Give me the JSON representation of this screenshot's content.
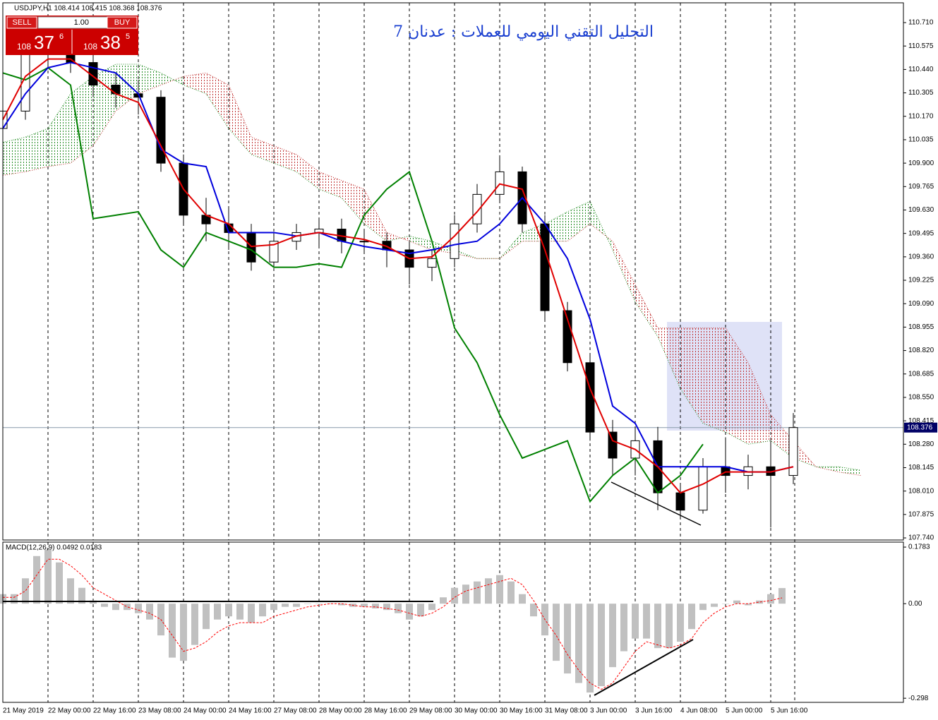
{
  "header": {
    "symbol_line": "USDJPY,H1  108.414 108.415 108.368 108.376"
  },
  "trade_panel": {
    "sell": "SELL",
    "lot": "1.00",
    "buy": "BUY",
    "sell_big": "108",
    "sell_pips": "37",
    "sell_frac": "6",
    "buy_big": "108",
    "buy_pips": "38",
    "buy_frac": "5"
  },
  "chart_data": [
    {
      "type": "candlestick",
      "title": "التحليل التقني اليومي للعملات : عدنان 7",
      "open": [
        110.1,
        110.2,
        110.55,
        110.55,
        110.48,
        110.35,
        110.3,
        110.28,
        109.9,
        109.6,
        109.55,
        109.5,
        109.33,
        109.45,
        109.5,
        109.52,
        109.45,
        109.45,
        109.4,
        109.3,
        109.35,
        109.55,
        109.72,
        109.85,
        109.55,
        109.05,
        108.75,
        108.35,
        108.2,
        108.3,
        108.0,
        107.9,
        108.15,
        108.1,
        108.15,
        108.1
      ],
      "high": [
        110.3,
        110.62,
        110.62,
        110.6,
        110.52,
        110.42,
        110.38,
        110.32,
        109.95,
        109.7,
        109.65,
        109.55,
        109.5,
        109.55,
        109.58,
        109.58,
        109.52,
        109.5,
        109.45,
        109.4,
        109.6,
        109.78,
        109.93,
        109.88,
        109.6,
        109.1,
        108.8,
        108.42,
        108.38,
        108.38,
        108.05,
        108.2,
        108.32,
        108.22,
        108.3,
        108.46
      ],
      "low": [
        110.02,
        110.15,
        110.45,
        110.42,
        110.28,
        110.22,
        110.18,
        109.85,
        109.55,
        109.45,
        109.4,
        109.28,
        109.3,
        109.4,
        109.42,
        109.38,
        109.38,
        109.3,
        109.2,
        109.22,
        109.3,
        109.5,
        109.68,
        109.5,
        109.0,
        108.7,
        108.3,
        108.1,
        108.1,
        107.9,
        107.85,
        107.88,
        108.0,
        108.02,
        107.8,
        108.05
      ],
      "close": [
        110.2,
        110.55,
        110.55,
        110.48,
        110.35,
        110.3,
        110.28,
        109.9,
        109.6,
        109.55,
        109.5,
        109.33,
        109.45,
        109.5,
        109.52,
        109.45,
        109.45,
        109.4,
        109.3,
        109.35,
        109.55,
        109.72,
        109.85,
        109.55,
        109.05,
        108.75,
        108.35,
        108.2,
        108.3,
        108.0,
        107.9,
        108.15,
        108.1,
        108.15,
        108.1,
        108.376
      ],
      "up_color": "#ffffff",
      "down_color": "#000000",
      "cloud": {
        "up_color": "#1f8a1f",
        "down_color": "#c03030",
        "span_a": [
          110.02,
          110.05,
          110.1,
          110.3,
          110.4,
          110.47,
          110.47,
          110.42,
          110.35,
          110.3,
          110.1,
          109.95,
          109.9,
          109.85,
          109.75,
          109.7,
          109.55,
          109.45,
          109.48,
          109.45,
          109.4,
          109.35,
          109.35,
          109.5,
          109.55,
          109.62,
          109.68,
          109.4,
          109.1,
          108.9,
          108.6,
          108.4,
          108.35,
          108.28,
          108.3,
          108.2,
          108.15,
          108.15,
          108.13
        ],
        "span_b": [
          109.83,
          109.85,
          109.88,
          109.9,
          110.0,
          110.2,
          110.3,
          110.35,
          110.4,
          110.42,
          110.35,
          110.05,
          110.0,
          109.95,
          109.85,
          109.8,
          109.75,
          109.5,
          109.45,
          109.4,
          109.38,
          109.35,
          109.35,
          109.45,
          109.45,
          109.45,
          109.55,
          109.45,
          109.2,
          108.95,
          108.95,
          108.95,
          108.95,
          108.75,
          108.45,
          108.3,
          108.15,
          108.12,
          108.1
        ]
      },
      "overlays": [
        {
          "color": "#008000",
          "values": [
            110.42,
            110.38,
            110.45,
            110.35,
            109.58,
            109.6,
            109.62,
            109.4,
            109.3,
            109.5,
            109.45,
            109.4,
            109.3,
            109.3,
            109.32,
            109.3,
            109.6,
            109.75,
            109.85,
            109.45,
            108.95,
            108.75,
            108.45,
            108.2,
            108.25,
            108.3,
            107.95,
            108.1,
            108.2,
            108.0,
            108.1,
            108.28,
            null,
            null,
            null,
            null
          ]
        },
        {
          "color": "#0000dd",
          "values": [
            110.1,
            110.3,
            110.45,
            110.48,
            110.45,
            110.42,
            110.3,
            109.98,
            109.9,
            109.88,
            109.5,
            109.5,
            109.5,
            109.48,
            109.5,
            109.45,
            109.42,
            109.4,
            109.38,
            109.4,
            109.43,
            109.45,
            109.55,
            109.7,
            109.55,
            109.35,
            109.0,
            108.5,
            108.4,
            108.15,
            108.15,
            108.15,
            108.15,
            108.12,
            108.12,
            108.15
          ]
        },
        {
          "color": "#e00000",
          "values": [
            110.15,
            110.4,
            110.5,
            110.5,
            110.4,
            110.3,
            110.25,
            110.0,
            109.75,
            109.6,
            109.55,
            109.42,
            109.43,
            109.48,
            109.5,
            109.48,
            109.46,
            109.42,
            109.35,
            109.36,
            109.48,
            109.62,
            109.78,
            109.75,
            109.4,
            109.0,
            108.6,
            108.3,
            108.25,
            108.15,
            108.0,
            108.05,
            108.12,
            108.12,
            108.12,
            108.15
          ]
        }
      ],
      "current_price": 108.376,
      "ylim": [
        107.728,
        110.824
      ],
      "yticks": [
        {
          "value": 110.71,
          "label": "110.710"
        },
        110.575,
        {
          "value": 110.44,
          "label": "110.440"
        },
        110.305,
        {
          "value": 110.17,
          "label": "110.170"
        },
        110.035,
        {
          "value": 109.9,
          "label": "109.900"
        },
        109.765,
        {
          "value": 109.63,
          "label": "109.630"
        },
        109.495,
        {
          "value": 109.36,
          "label": "109.360"
        },
        109.225,
        {
          "value": 109.09,
          "label": "109.090"
        },
        108.955,
        {
          "value": 108.82,
          "label": "108.820"
        },
        108.685,
        {
          "value": 108.55,
          "label": "108.550"
        },
        108.415,
        {
          "value": 108.28,
          "label": "108.280"
        },
        108.145,
        {
          "value": 108.01,
          "label": "108.010"
        },
        107.875,
        {
          "value": 107.74,
          "label": "107.740"
        }
      ]
    },
    {
      "type": "macd",
      "label": "MACD(12,26,9) 0.0492 0.0183",
      "color": "#c0c0c0",
      "values": [
        0.03,
        0.03,
        0.08,
        0.15,
        0.17,
        0.13,
        0.08,
        0.05,
        0.01,
        -0.01,
        -0.02,
        -0.02,
        -0.03,
        -0.05,
        -0.1,
        -0.17,
        -0.18,
        -0.13,
        -0.08,
        -0.05,
        -0.04,
        -0.05,
        -0.06,
        -0.04,
        -0.02,
        -0.01,
        -0.01,
        0,
        0,
        0,
        -0.005,
        -0.01,
        -0.01,
        -0.015,
        -0.02,
        -0.03,
        -0.05,
        -0.04,
        -0.02,
        0.02,
        0.05,
        0.06,
        0.07,
        0.08,
        0.09,
        0.07,
        0.03,
        -0.04,
        -0.1,
        -0.18,
        -0.22,
        -0.25,
        -0.28,
        -0.26,
        -0.2,
        -0.15,
        -0.11,
        -0.11,
        -0.14,
        -0.14,
        -0.12,
        -0.08,
        -0.02,
        -0.01,
        0,
        0.01,
        -0.005,
        0.01,
        0.03,
        0.0492
      ],
      "signal": {
        "color": "#ff0000",
        "values": [
          0.02,
          0.02,
          0.04,
          0.09,
          0.14,
          0.14,
          0.12,
          0.09,
          0.05,
          0.03,
          0.01,
          -0.01,
          -0.02,
          -0.03,
          -0.05,
          -0.1,
          -0.15,
          -0.14,
          -0.12,
          -0.09,
          -0.07,
          -0.06,
          -0.06,
          -0.06,
          -0.04,
          -0.03,
          -0.02,
          -0.01,
          -0.005,
          0,
          0,
          -0.005,
          -0.01,
          -0.01,
          -0.015,
          -0.02,
          -0.03,
          -0.04,
          -0.03,
          -0.01,
          0.02,
          0.04,
          0.05,
          0.06,
          0.07,
          0.08,
          0.06,
          0.01,
          -0.05,
          -0.1,
          -0.16,
          -0.21,
          -0.25,
          -0.27,
          -0.25,
          -0.2,
          -0.15,
          -0.12,
          -0.13,
          -0.14,
          -0.13,
          -0.11,
          -0.06,
          -0.03,
          -0.01,
          0,
          0,
          0.005,
          0.01,
          0.0183
        ]
      },
      "ylim": [
        -0.311,
        0.194
      ],
      "yticks": [
        0.1783,
        {
          "value": 0,
          "label": "0.00"
        },
        -0.298
      ],
      "x_axis_labels": [
        "21 May 2019",
        "22 May 00:00",
        "22 May 16:00",
        "23 May 08:00",
        "24 May 00:00",
        "24 May 16:00",
        "27 May 08:00",
        "28 May 00:00",
        "28 May 16:00",
        "29 May 08:00",
        "30 May 00:00",
        "30 May 16:00",
        "31 May 08:00",
        "3 Jun 00:00",
        "3 Jun 16:00",
        "4 Jun 08:00",
        "5 Jun 00:00",
        "5 Jun 16:00"
      ]
    }
  ]
}
